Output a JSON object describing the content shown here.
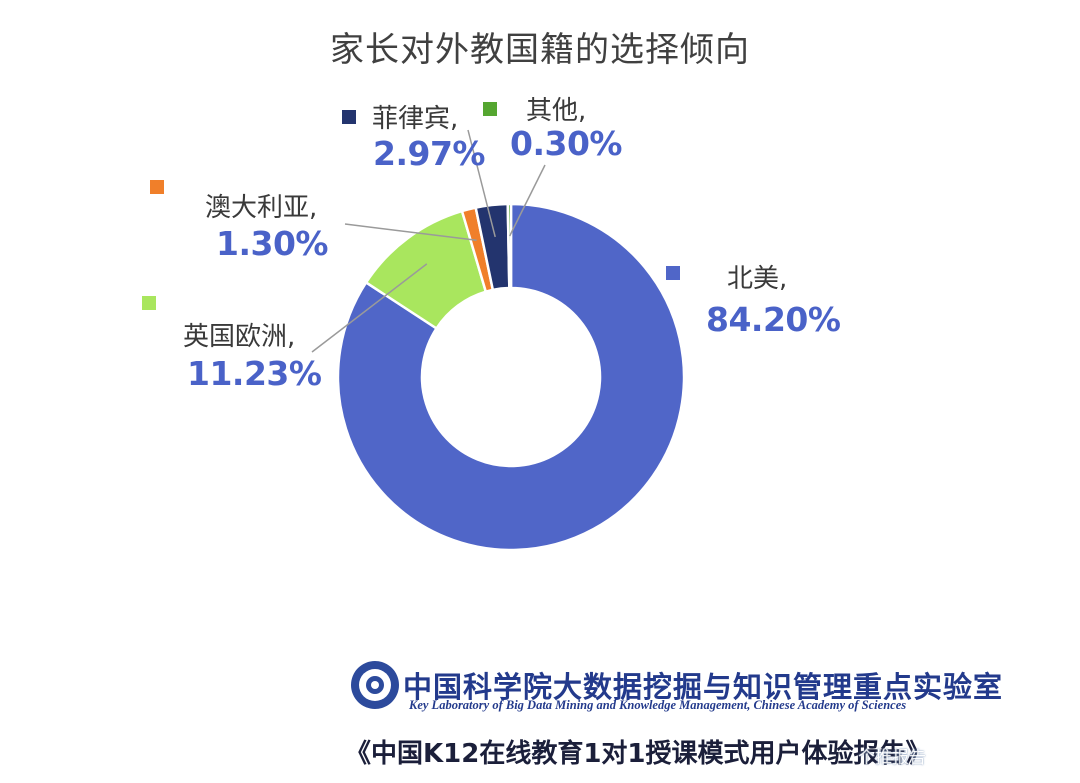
{
  "title": "家长对外教国籍的选择倾向",
  "chart_data": {
    "type": "pie",
    "subtype": "donut",
    "title": "家长对外教国籍的选择倾向",
    "slices": [
      {
        "label": "北美,",
        "value": 84.2,
        "display": "84.20%",
        "color": "#5066c8"
      },
      {
        "label": "英国欧洲,",
        "value": 11.23,
        "display": "11.23%",
        "color": "#a9e65e"
      },
      {
        "label": "澳大利亚,",
        "value": 1.3,
        "display": "1.30%",
        "color": "#f07f2a"
      },
      {
        "label": "菲律宾,",
        "value": 2.97,
        "display": "2.97%",
        "color": "#23346e"
      },
      {
        "label": "其他,",
        "value": 0.3,
        "display": "0.30%",
        "color": "#55a630"
      }
    ],
    "legend": "labels beside slices"
  },
  "footer": {
    "institution_cn": "中国科学院大数据挖掘与知识管理重点实验室",
    "institution_en": "Key Laboratory of Big Data Mining and Knowledge Management, Chinese Academy of Sciences",
    "report": "《中国K12在线教育1对1授课模式用户体验报告》",
    "watermark": "个推报告"
  }
}
